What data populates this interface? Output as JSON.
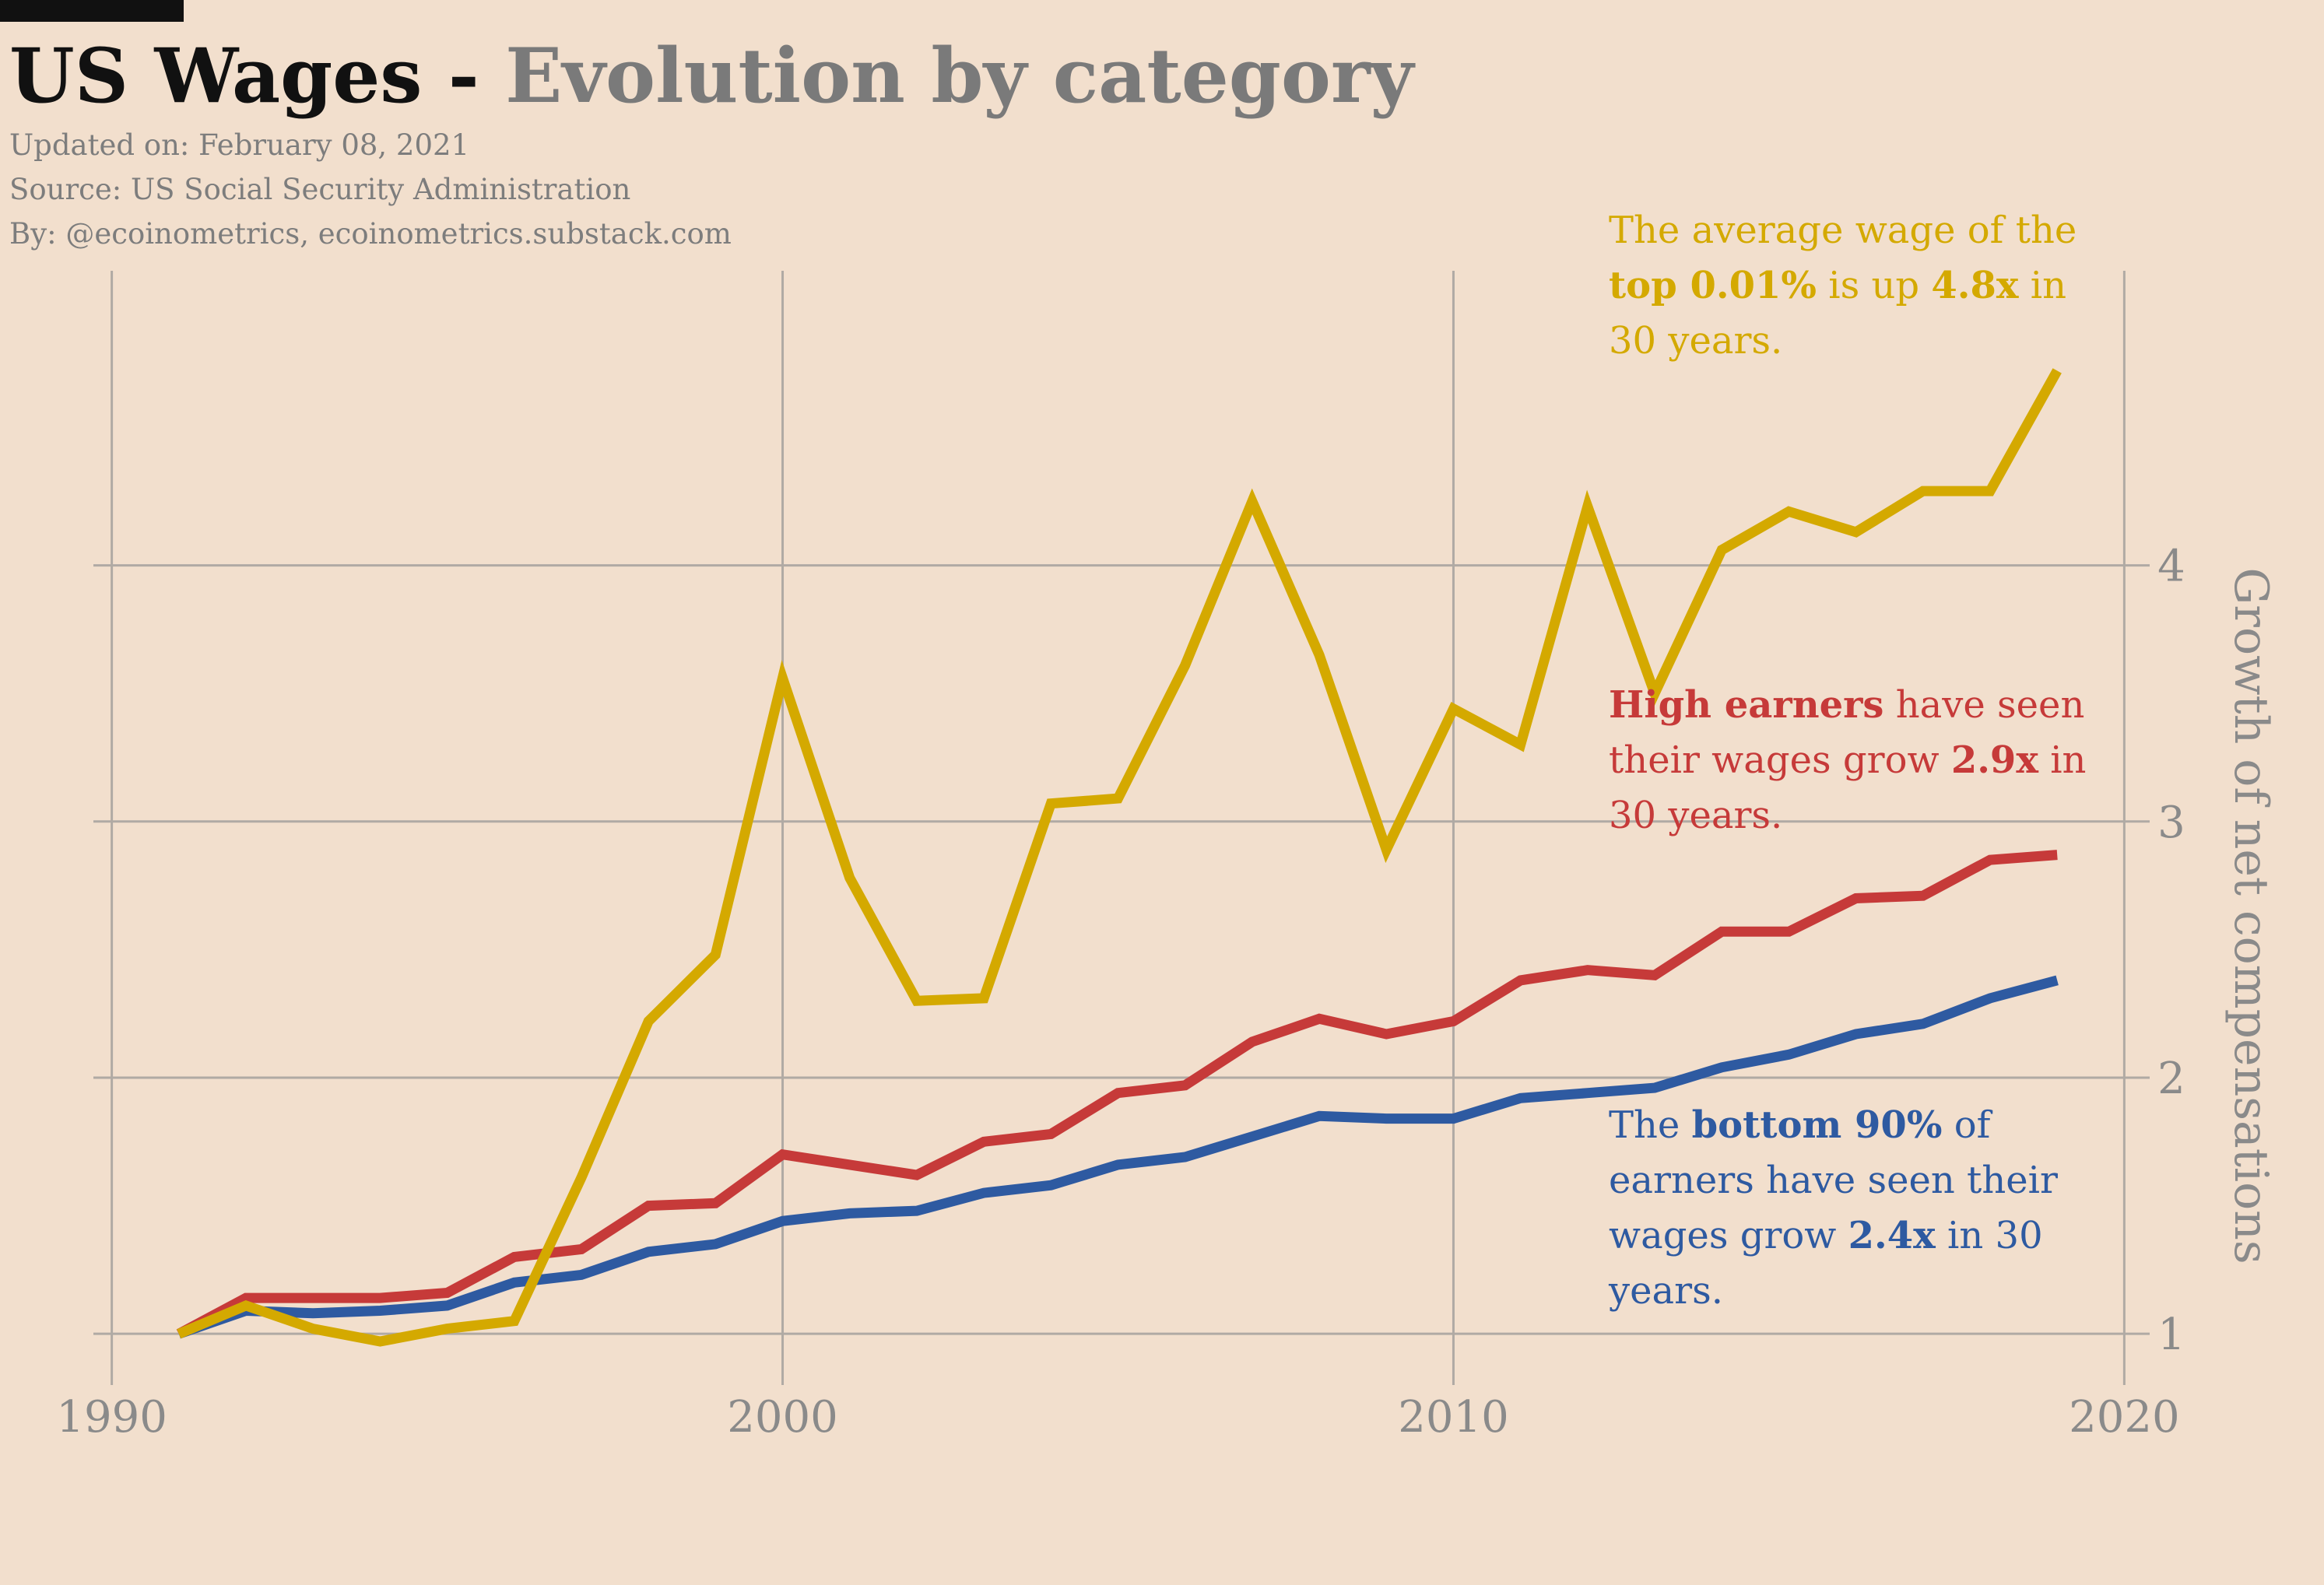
{
  "header": {
    "title_main": "US Wages",
    "title_sep": " - ",
    "title_sub": "Evolution by category",
    "updated": "Updated on: February 08, 2021",
    "source": "Source: US Social Security Administration",
    "byline": "By: @ecoinometrics, ecoinometrics.substack.com"
  },
  "colors": {
    "background": "#f2dfcd",
    "top": "#d4a900",
    "high": "#c63a39",
    "bottom": "#2e5aa1",
    "grid": "#b0aaa4",
    "axis_text": "#8a8a8a"
  },
  "annotations": {
    "top": {
      "t1": "The average wage of the",
      "b1": "top 0.01%",
      "t2": " is up ",
      "b2": "4.8x",
      "t3": " in 30 years."
    },
    "high": {
      "b1": "High earners",
      "t1": " have seen their wages grow ",
      "b2": "2.9x",
      "t2": " in 30 years."
    },
    "bottom": {
      "t1": "The ",
      "b1": "bottom 90%",
      "t2": " of earners have seen their wages grow ",
      "b2": "2.4x",
      "t3": " in 30 years."
    }
  },
  "chart_data": {
    "type": "line",
    "title": "US Wages - Evolution by category",
    "xlabel": "",
    "ylabel": "Growth of net compensations",
    "xlim": [
      1989.9,
      2020.1
    ],
    "ylim": [
      0.8,
      5.15
    ],
    "xticks": [
      1990,
      2000,
      2010,
      2020
    ],
    "yticks": [
      1,
      2,
      3,
      4
    ],
    "grid": true,
    "y_axis_side": "right",
    "legend": "none",
    "x": [
      1991,
      1992,
      1993,
      1994,
      1995,
      1996,
      1997,
      1998,
      1999,
      2000,
      2001,
      2002,
      2003,
      2004,
      2005,
      2006,
      2007,
      2008,
      2009,
      2010,
      2011,
      2012,
      2013,
      2014,
      2015,
      2016,
      2017,
      2018,
      2019
    ],
    "series": [
      {
        "key": "bottom",
        "values": [
          1.0,
          1.09,
          1.08,
          1.09,
          1.11,
          1.2,
          1.23,
          1.32,
          1.35,
          1.44,
          1.47,
          1.48,
          1.55,
          1.58,
          1.66,
          1.69,
          1.77,
          1.85,
          1.84,
          1.84,
          1.92,
          1.94,
          1.96,
          2.04,
          2.09,
          2.17,
          2.21,
          2.31,
          2.38
        ]
      },
      {
        "key": "high",
        "values": [
          1.0,
          1.14,
          1.14,
          1.14,
          1.16,
          1.3,
          1.33,
          1.5,
          1.51,
          1.7,
          1.66,
          1.62,
          1.75,
          1.78,
          1.94,
          1.97,
          2.14,
          2.23,
          2.17,
          2.22,
          2.38,
          2.42,
          2.4,
          2.57,
          2.57,
          2.7,
          2.71,
          2.85,
          2.87
        ]
      },
      {
        "key": "top",
        "values": [
          1.0,
          1.11,
          1.02,
          0.97,
          1.02,
          1.05,
          1.61,
          2.22,
          2.48,
          3.56,
          2.78,
          2.3,
          2.31,
          3.07,
          3.09,
          3.61,
          4.25,
          3.65,
          2.89,
          3.44,
          3.3,
          4.23,
          3.5,
          4.06,
          4.21,
          4.13,
          4.29,
          4.29,
          4.76
        ]
      }
    ]
  }
}
